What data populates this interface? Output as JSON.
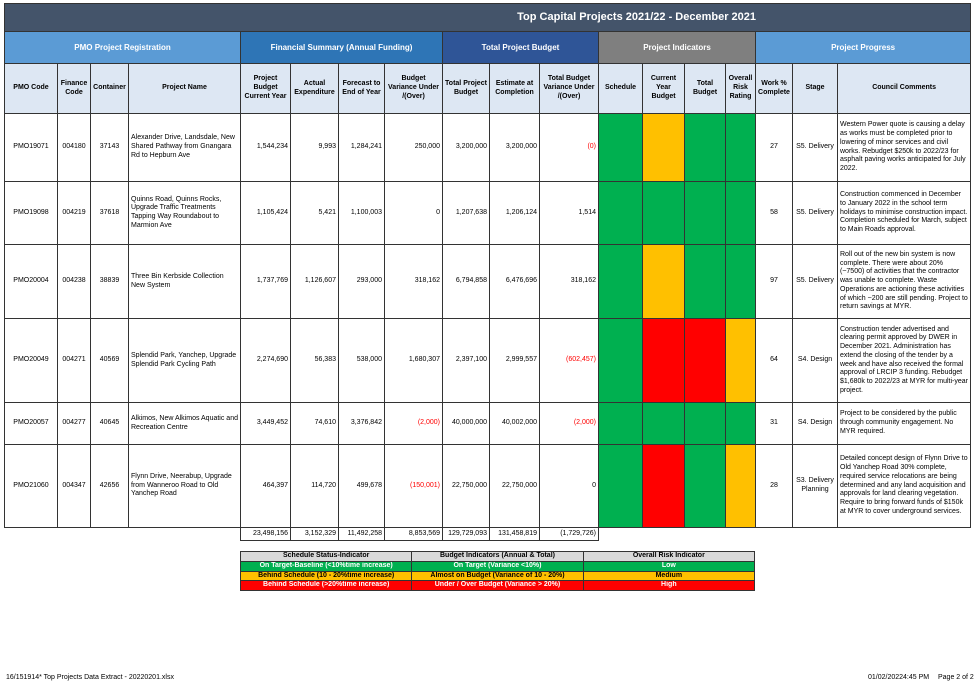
{
  "title": "Top Capital Projects 2021/22 - December 2021",
  "groups": [
    "PMO Project Registration",
    "Financial Summary (Annual Funding)",
    "Total Project Budget",
    "Project Indicators",
    "Project Progress"
  ],
  "columns": [
    "PMO Code",
    "Finance Code",
    "Container",
    "Project Name",
    "Project Budget Current Year",
    "Actual Expenditure",
    "Forecast to End of Year",
    "Budget Variance Under /(Over)",
    "Total Project Budget",
    "Estimate at Completion",
    "Total Budget Variance Under /(Over)",
    "Schedule",
    "Current Year Budget",
    "Total Budget",
    "Overall Risk Rating",
    "Work % Complete",
    "Stage",
    "Council Comments"
  ],
  "rows": [
    {
      "cells": [
        "PMO19071",
        "004180",
        "37143",
        "Alexander Drive, Landsdale, New Shared Pathway from Gnangara Rd to Hepburn Ave",
        "1,544,234",
        "9,993",
        "1,284,241",
        "250,000",
        "3,200,000",
        "3,200,000",
        "(0)"
      ],
      "indicators": [
        "#00b050",
        "#ffc000",
        "#00b050",
        "#00b050"
      ],
      "progress": [
        "27",
        "S5. Delivery",
        "Western Power quote is causing a delay as works must be completed prior to lowering of minor services and civil works. Rebudget $250k to 2022/23 for asphalt paving works anticipated for July 2022."
      ]
    },
    {
      "cells": [
        "PMO19098",
        "004219",
        "37618",
        "Quinns Road, Quinns Rocks, Upgrade Traffic Treatments Tapping Way Roundabout to Marmion Ave",
        "1,105,424",
        "5,421",
        "1,100,003",
        "0",
        "1,207,638",
        "1,206,124",
        "1,514"
      ],
      "indicators": [
        "#00b050",
        "#00b050",
        "#00b050",
        "#00b050"
      ],
      "progress": [
        "58",
        "S5. Delivery",
        "Construction commenced in December to January 2022 in the school term holidays to minimise construction impact. Completion scheduled for March, subject to Main Roads approval."
      ]
    },
    {
      "cells": [
        "PMO20004",
        "004238",
        "38839",
        "Three Bin Kerbside Collection New System",
        "1,737,769",
        "1,126,607",
        "293,000",
        "318,162",
        "6,794,858",
        "6,476,696",
        "318,162"
      ],
      "indicators": [
        "#00b050",
        "#ffc000",
        "#00b050",
        "#00b050"
      ],
      "progress": [
        "97",
        "S5. Delivery",
        "Roll out of the new bin system is now complete. There were about 20% (~7500) of activities that the contractor was unable to complete. Waste Operations are actioning these activities of which ~200 are still pending. Project to return savings at MYR."
      ]
    },
    {
      "cells": [
        "PMO20049",
        "004271",
        "40569",
        "Splendid Park, Yanchep, Upgrade Splendid Park Cycling Path",
        "2,274,690",
        "56,383",
        "538,000",
        "1,680,307",
        "2,397,100",
        "2,999,557",
        "(602,457)"
      ],
      "indicators": [
        "#00b050",
        "#ff0000",
        "#ff0000",
        "#ffc000"
      ],
      "progress": [
        "64",
        "S4. Design",
        "Construction tender advertised and clearing permit approved by DWER in December 2021. Administration has extend the closing of the tender by a week and have also received the formal approval of LRCIP 3 funding. Rebudget $1,680k to 2022/23 at MYR for multi-year project."
      ]
    },
    {
      "cells": [
        "PMO20057",
        "004277",
        "40645",
        "Alkimos, New Alkimos Aquatic and Recreation Centre",
        "3,449,452",
        "74,610",
        "3,376,842",
        "(2,000)",
        "40,000,000",
        "40,002,000",
        "(2,000)"
      ],
      "indicators": [
        "#00b050",
        "#00b050",
        "#00b050",
        "#00b050"
      ],
      "progress": [
        "31",
        "S4. Design",
        "Project to be considered by the public through community engagement. No MYR required."
      ]
    },
    {
      "cells": [
        "PMO21060",
        "004347",
        "42656",
        "Flynn Drive, Neerabup, Upgrade from Wanneroo Road to Old Yanchep Road",
        "464,397",
        "114,720",
        "499,678",
        "(150,001)",
        "22,750,000",
        "22,750,000",
        "0"
      ],
      "indicators": [
        "#00b050",
        "#ff0000",
        "#00b050",
        "#ffc000"
      ],
      "progress": [
        "28",
        "S3. Delivery Planning",
        "Detailed concept design of Flynn Drive to Old Yanchep Road 30% complete, required service relocations are being determined and any land acquisition and approvals for land clearing vegetation. Require to bring forward funds of $150k at MYR to cover underground services."
      ]
    }
  ],
  "totals": [
    "23,498,156",
    "3,152,329",
    "11,492,258",
    "8,853,569",
    "129,729,093",
    "131,458,819",
    "(1,729,726)"
  ],
  "legend": {
    "headers": [
      "Schedule Status-Indicator",
      "Budget Indicators (Annual & Total)",
      "Overall Risk Indicator"
    ],
    "rows": [
      [
        "On Target-Baseline (<10%time increase)",
        "On Target (Variance <10%)",
        "Low"
      ],
      [
        "Behind Schedule (10 - 20%time increase)",
        "Almost on Budget (Variance of 10 - 20%)",
        "Medium"
      ],
      [
        "Behind Schedule (>20%time increase)",
        "Under / Over Budget (Variance > 20%)",
        "High"
      ]
    ]
  },
  "footer": {
    "left": "16/151914*  Top Projects Data Extract - 20220201.xlsx",
    "date": "01/02/20224:45 PM",
    "page": "Page 2 of 2"
  }
}
